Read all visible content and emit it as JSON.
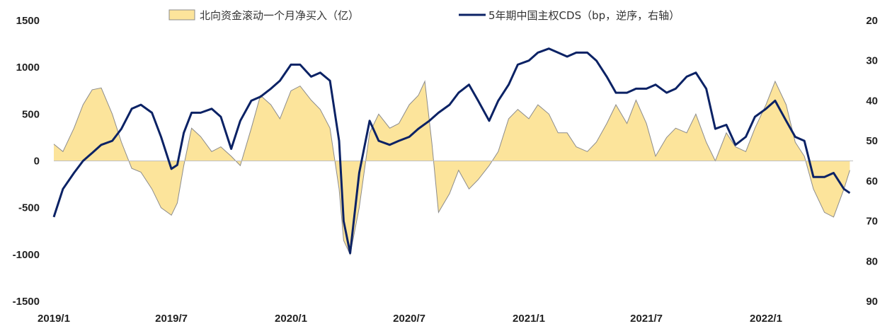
{
  "chart_data": {
    "type": "area",
    "title": "",
    "x_ticks": [
      "2019/1",
      "2019/7",
      "2020/1",
      "2020/7",
      "2021/1",
      "2021/7",
      "2022/1"
    ],
    "x_range": [
      "2019-01-01",
      "2022-05-15"
    ],
    "y_left": {
      "label": "",
      "range": [
        -1500,
        1500
      ],
      "ticks": [
        1500,
        1000,
        500,
        0,
        -500,
        -1000,
        -1500
      ]
    },
    "y_right": {
      "label": "",
      "range": [
        20,
        90
      ],
      "inverted": true,
      "ticks": [
        20,
        30,
        40,
        50,
        60,
        70,
        80,
        90
      ]
    },
    "grid": false,
    "legend_position": "top",
    "series": [
      {
        "name": "北向资金滚动一个月净买入（亿）",
        "type": "area",
        "axis": "left",
        "color": "#FCE49B",
        "edge_color": "#8C8C8C",
        "points": [
          [
            "2019-01-01",
            180
          ],
          [
            "2019-01-15",
            100
          ],
          [
            "2019-02-01",
            350
          ],
          [
            "2019-02-15",
            600
          ],
          [
            "2019-03-01",
            760
          ],
          [
            "2019-03-15",
            780
          ],
          [
            "2019-04-01",
            500
          ],
          [
            "2019-04-15",
            200
          ],
          [
            "2019-05-01",
            -80
          ],
          [
            "2019-05-15",
            -120
          ],
          [
            "2019-06-01",
            -300
          ],
          [
            "2019-06-15",
            -500
          ],
          [
            "2019-07-01",
            -580
          ],
          [
            "2019-07-10",
            -450
          ],
          [
            "2019-07-20",
            -50
          ],
          [
            "2019-08-01",
            350
          ],
          [
            "2019-08-15",
            260
          ],
          [
            "2019-09-01",
            100
          ],
          [
            "2019-09-15",
            150
          ],
          [
            "2019-10-01",
            50
          ],
          [
            "2019-10-15",
            -50
          ],
          [
            "2019-11-01",
            350
          ],
          [
            "2019-11-15",
            700
          ],
          [
            "2019-12-01",
            600
          ],
          [
            "2019-12-15",
            450
          ],
          [
            "2020-01-01",
            750
          ],
          [
            "2020-01-15",
            800
          ],
          [
            "2020-02-01",
            650
          ],
          [
            "2020-02-15",
            550
          ],
          [
            "2020-03-01",
            350
          ],
          [
            "2020-03-15",
            -300
          ],
          [
            "2020-03-22",
            -850
          ],
          [
            "2020-04-01",
            -1000
          ],
          [
            "2020-04-15",
            -500
          ],
          [
            "2020-05-01",
            300
          ],
          [
            "2020-05-15",
            500
          ],
          [
            "2020-06-01",
            350
          ],
          [
            "2020-06-15",
            400
          ],
          [
            "2020-07-01",
            600
          ],
          [
            "2020-07-15",
            700
          ],
          [
            "2020-07-25",
            850
          ],
          [
            "2020-08-05",
            180
          ],
          [
            "2020-08-15",
            -550
          ],
          [
            "2020-09-01",
            -350
          ],
          [
            "2020-09-15",
            -100
          ],
          [
            "2020-10-01",
            -300
          ],
          [
            "2020-10-15",
            -200
          ],
          [
            "2020-11-01",
            -50
          ],
          [
            "2020-11-15",
            100
          ],
          [
            "2020-12-01",
            450
          ],
          [
            "2020-12-15",
            550
          ],
          [
            "2021-01-01",
            450
          ],
          [
            "2021-01-15",
            600
          ],
          [
            "2021-02-01",
            500
          ],
          [
            "2021-02-15",
            300
          ],
          [
            "2021-03-01",
            300
          ],
          [
            "2021-03-15",
            150
          ],
          [
            "2021-04-01",
            100
          ],
          [
            "2021-04-15",
            200
          ],
          [
            "2021-05-01",
            400
          ],
          [
            "2021-05-15",
            600
          ],
          [
            "2021-06-01",
            400
          ],
          [
            "2021-06-15",
            650
          ],
          [
            "2021-07-01",
            400
          ],
          [
            "2021-07-15",
            50
          ],
          [
            "2021-08-01",
            250
          ],
          [
            "2021-08-15",
            350
          ],
          [
            "2021-09-01",
            300
          ],
          [
            "2021-09-15",
            500
          ],
          [
            "2021-10-01",
            200
          ],
          [
            "2021-10-15",
            0
          ],
          [
            "2021-11-01",
            300
          ],
          [
            "2021-11-15",
            150
          ],
          [
            "2021-12-01",
            100
          ],
          [
            "2021-12-15",
            350
          ],
          [
            "2022-01-01",
            600
          ],
          [
            "2022-01-15",
            850
          ],
          [
            "2022-02-01",
            600
          ],
          [
            "2022-02-15",
            200
          ],
          [
            "2022-03-01",
            50
          ],
          [
            "2022-03-15",
            -300
          ],
          [
            "2022-04-01",
            -550
          ],
          [
            "2022-04-15",
            -600
          ],
          [
            "2022-05-01",
            -300
          ],
          [
            "2022-05-10",
            -100
          ]
        ]
      },
      {
        "name": "5年期中国主权CDS（bp，逆序，右轴）",
        "type": "line",
        "axis": "right",
        "color": "#0B2265",
        "points": [
          [
            "2019-01-01",
            69
          ],
          [
            "2019-01-15",
            62
          ],
          [
            "2019-02-01",
            58
          ],
          [
            "2019-02-15",
            55
          ],
          [
            "2019-03-01",
            53
          ],
          [
            "2019-03-15",
            51
          ],
          [
            "2019-04-01",
            50
          ],
          [
            "2019-04-15",
            47
          ],
          [
            "2019-05-01",
            42
          ],
          [
            "2019-05-15",
            41
          ],
          [
            "2019-06-01",
            43
          ],
          [
            "2019-06-15",
            49
          ],
          [
            "2019-07-01",
            57
          ],
          [
            "2019-07-10",
            56
          ],
          [
            "2019-07-20",
            48
          ],
          [
            "2019-08-01",
            43
          ],
          [
            "2019-08-15",
            43
          ],
          [
            "2019-09-01",
            42
          ],
          [
            "2019-09-15",
            44
          ],
          [
            "2019-10-01",
            52
          ],
          [
            "2019-10-15",
            45
          ],
          [
            "2019-11-01",
            40
          ],
          [
            "2019-11-15",
            39
          ],
          [
            "2019-12-01",
            37
          ],
          [
            "2019-12-15",
            35
          ],
          [
            "2020-01-01",
            31
          ],
          [
            "2020-01-15",
            31
          ],
          [
            "2020-02-01",
            34
          ],
          [
            "2020-02-15",
            33
          ],
          [
            "2020-03-01",
            35
          ],
          [
            "2020-03-15",
            50
          ],
          [
            "2020-03-22",
            70
          ],
          [
            "2020-04-01",
            78
          ],
          [
            "2020-04-15",
            58
          ],
          [
            "2020-05-01",
            45
          ],
          [
            "2020-05-15",
            50
          ],
          [
            "2020-06-01",
            51
          ],
          [
            "2020-06-15",
            50
          ],
          [
            "2020-07-01",
            49
          ],
          [
            "2020-07-15",
            47
          ],
          [
            "2020-08-01",
            45
          ],
          [
            "2020-08-15",
            43
          ],
          [
            "2020-09-01",
            41
          ],
          [
            "2020-09-15",
            38
          ],
          [
            "2020-10-01",
            36
          ],
          [
            "2020-10-15",
            40
          ],
          [
            "2020-11-01",
            45
          ],
          [
            "2020-11-15",
            40
          ],
          [
            "2020-12-01",
            36
          ],
          [
            "2020-12-15",
            31
          ],
          [
            "2021-01-01",
            30
          ],
          [
            "2021-01-15",
            28
          ],
          [
            "2021-02-01",
            27
          ],
          [
            "2021-02-15",
            28
          ],
          [
            "2021-03-01",
            29
          ],
          [
            "2021-03-15",
            28
          ],
          [
            "2021-04-01",
            28
          ],
          [
            "2021-04-15",
            30
          ],
          [
            "2021-05-01",
            34
          ],
          [
            "2021-05-15",
            38
          ],
          [
            "2021-06-01",
            38
          ],
          [
            "2021-06-15",
            37
          ],
          [
            "2021-07-01",
            37
          ],
          [
            "2021-07-15",
            36
          ],
          [
            "2021-08-01",
            38
          ],
          [
            "2021-08-15",
            37
          ],
          [
            "2021-09-01",
            34
          ],
          [
            "2021-09-15",
            33
          ],
          [
            "2021-10-01",
            37
          ],
          [
            "2021-10-15",
            47
          ],
          [
            "2021-11-01",
            46
          ],
          [
            "2021-11-15",
            51
          ],
          [
            "2021-12-01",
            49
          ],
          [
            "2021-12-15",
            44
          ],
          [
            "2022-01-01",
            42
          ],
          [
            "2022-01-15",
            40
          ],
          [
            "2022-02-01",
            45
          ],
          [
            "2022-02-15",
            49
          ],
          [
            "2022-03-01",
            50
          ],
          [
            "2022-03-15",
            59
          ],
          [
            "2022-04-01",
            59
          ],
          [
            "2022-04-15",
            58
          ],
          [
            "2022-05-01",
            62
          ],
          [
            "2022-05-10",
            63
          ]
        ]
      }
    ]
  }
}
